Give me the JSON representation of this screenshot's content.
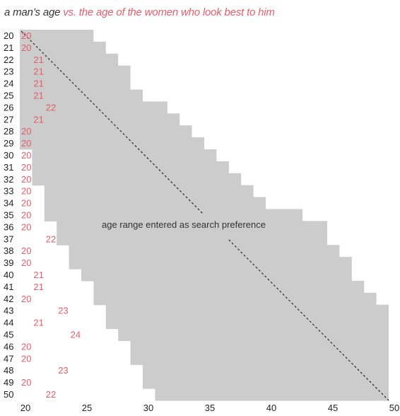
{
  "title": {
    "part1": "a man’s age",
    "part2": "vs. the age of the women who look best to him"
  },
  "colors": {
    "band": "#cccccc",
    "preferred": "#e35d6a",
    "text": "#222222",
    "diagonal": "#222222"
  },
  "annotation": "age range entered as search preference",
  "chart_data": {
    "type": "heatmap",
    "title": "a man’s age vs. the age of the women who look best to him",
    "xlabel": "",
    "ylabel": "",
    "x_range": [
      20,
      50
    ],
    "y_range": [
      20,
      50
    ],
    "x_ticks": [
      "20",
      "25",
      "30",
      "35",
      "40",
      "45",
      "50"
    ],
    "male_ages": [
      20,
      21,
      22,
      23,
      24,
      25,
      26,
      27,
      28,
      29,
      30,
      31,
      32,
      33,
      34,
      35,
      36,
      37,
      38,
      39,
      40,
      41,
      42,
      43,
      44,
      45,
      46,
      47,
      48,
      49,
      50
    ],
    "preferred_female_age": [
      20,
      20,
      21,
      21,
      21,
      21,
      22,
      21,
      20,
      20,
      20,
      20,
      20,
      20,
      20,
      20,
      20,
      22,
      20,
      20,
      21,
      21,
      20,
      23,
      21,
      24,
      20,
      20,
      23,
      20,
      22
    ],
    "search_min_age": [
      20,
      20,
      20,
      20,
      20,
      20,
      20,
      20,
      20,
      20,
      21,
      21,
      21,
      22,
      22,
      22,
      23,
      23,
      24,
      24,
      25,
      26,
      26,
      27,
      27,
      28,
      29,
      29,
      30,
      30,
      31
    ],
    "search_max_age": [
      26,
      27,
      28,
      29,
      29,
      30,
      32,
      33,
      34,
      35,
      36,
      37,
      38,
      39,
      40,
      43,
      45,
      45,
      46,
      47,
      47,
      48,
      49,
      50,
      50,
      50,
      50,
      50,
      50,
      50,
      50
    ],
    "annotations": [
      "age range entered as search preference"
    ]
  }
}
